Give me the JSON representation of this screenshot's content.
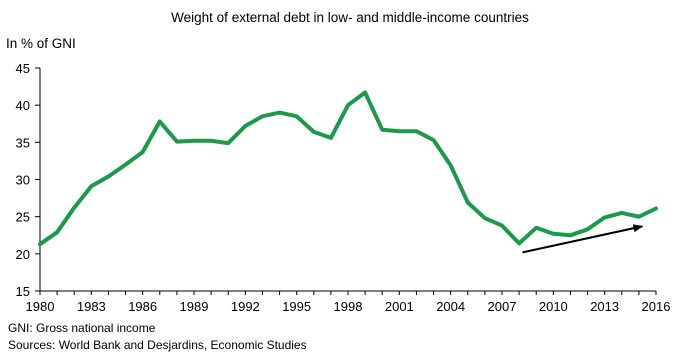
{
  "chart_data": {
    "type": "line",
    "title": "Weight of external debt in low- and middle-income countries",
    "ylabel": "In % of GNI",
    "xlabel": "",
    "ylim": [
      15,
      45
    ],
    "yticks": [
      15,
      20,
      25,
      30,
      35,
      40,
      45
    ],
    "xlim": [
      1980,
      2016
    ],
    "xticks": [
      1980,
      1983,
      1986,
      1989,
      1992,
      1995,
      1998,
      2001,
      2004,
      2007,
      2010,
      2013,
      2016
    ],
    "grid": false,
    "legend": "none",
    "series": [
      {
        "color": "#1a9a4a",
        "x": [
          1980,
          1981,
          1982,
          1983,
          1984,
          1985,
          1986,
          1987,
          1988,
          1989,
          1990,
          1991,
          1992,
          1993,
          1994,
          1995,
          1996,
          1997,
          1998,
          1999,
          2000,
          2001,
          2002,
          2003,
          2004,
          2005,
          2006,
          2007,
          2008,
          2009,
          2010,
          2011,
          2012,
          2013,
          2014,
          2015,
          2016
        ],
        "values": [
          21.3,
          22.9,
          26.2,
          29.1,
          30.4,
          32.0,
          33.7,
          37.8,
          35.1,
          35.2,
          35.2,
          34.9,
          37.2,
          38.5,
          39.0,
          38.5,
          36.4,
          35.6,
          40.0,
          41.7,
          36.7,
          36.5,
          36.5,
          35.3,
          31.9,
          26.9,
          24.8,
          23.8,
          21.4,
          23.5,
          22.7,
          22.5,
          23.3,
          24.9,
          25.5,
          25.0,
          26.1
        ]
      }
    ],
    "annotations": [
      {
        "type": "arrow",
        "from": [
          2008.2,
          20.2
        ],
        "to": [
          2015.2,
          23.7
        ],
        "color": "#000000"
      }
    ]
  },
  "notes": {
    "gni": "GNI: Gross national income",
    "sources": "Sources: World Bank and Desjardins, Economic Studies"
  }
}
